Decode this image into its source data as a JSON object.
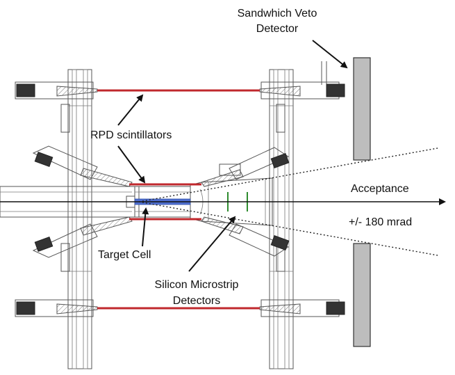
{
  "labels": {
    "veto_line1": "Sandwhich Veto",
    "veto_line2": "Detector",
    "rpd": "RPD scintillators",
    "acceptance": "Acceptance",
    "angle": "+/- 180 mrad",
    "target": "Target Cell",
    "silicon_line1": "Silicon Microstrip",
    "silicon_line2": "Detectors"
  },
  "colors": {
    "scintillator": "#c0282d",
    "target": "#4f6fd0",
    "silicon": "#2e8b2e",
    "veto_fill": "#bdbdbd",
    "text": "#111111"
  }
}
